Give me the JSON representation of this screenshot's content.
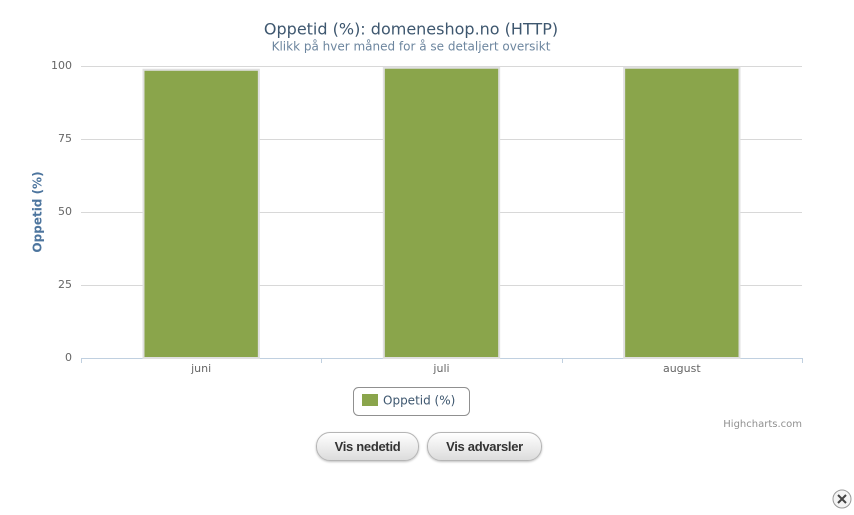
{
  "chart_data": {
    "type": "bar",
    "title": "Oppetid (%): domeneshop.no (HTTP)",
    "subtitle": "Klikk på hver måned for å se detaljert oversikt",
    "y_axis_label": "Oppetid (%)",
    "categories": [
      "juni",
      "juli",
      "august"
    ],
    "series": [
      {
        "name": "Oppetid (%)",
        "color": "#8aa54b",
        "values": [
          98.7,
          99.4,
          99.4
        ]
      }
    ],
    "ylim": [
      0,
      100
    ],
    "yticks": [
      0,
      25,
      50,
      75,
      100
    ],
    "grid": true,
    "legend": "bottom",
    "credits": "Highcharts.com"
  },
  "buttons": [
    "Vis nedetid",
    "Vis advarsler"
  ]
}
